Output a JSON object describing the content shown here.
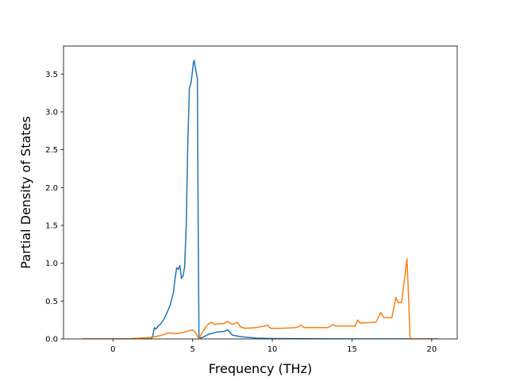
{
  "chart_data": {
    "type": "line",
    "title": "",
    "xlabel": "Frequency (THz)",
    "ylabel": "Partial Density of States",
    "xlim": [
      -3.1,
      21.6
    ],
    "ylim": [
      0,
      3.87
    ],
    "xticks": [
      0,
      5,
      10,
      15,
      20
    ],
    "yticks": [
      0.0,
      0.5,
      1.0,
      1.5,
      2.0,
      2.5,
      3.0,
      3.5
    ],
    "grid": false,
    "legend": "none",
    "series": [
      {
        "color": "#1f77b4",
        "x": [
          -1.9,
          2.4,
          2.5,
          2.6,
          2.7,
          2.8,
          3.0,
          3.2,
          3.4,
          3.6,
          3.8,
          3.9,
          4.0,
          4.1,
          4.2,
          4.3,
          4.4,
          4.5,
          4.6,
          4.7,
          4.8,
          4.9,
          5.0,
          5.05,
          5.1,
          5.2,
          5.3,
          5.35,
          5.4,
          5.6,
          6.0,
          6.5,
          7.0,
          7.2,
          7.5,
          8.0,
          9.0,
          10.0,
          12.0,
          15.0,
          20.4
        ],
        "y": [
          0.0,
          0.0,
          0.04,
          0.15,
          0.13,
          0.16,
          0.2,
          0.26,
          0.35,
          0.45,
          0.62,
          0.8,
          0.94,
          0.92,
          0.97,
          0.8,
          0.83,
          0.95,
          1.5,
          2.6,
          3.32,
          3.38,
          3.55,
          3.65,
          3.68,
          3.55,
          3.44,
          1.5,
          0.0,
          0.02,
          0.06,
          0.09,
          0.1,
          0.12,
          0.05,
          0.03,
          0.01,
          0.005,
          0.003,
          0.0,
          0.0
        ]
      },
      {
        "color": "#ff7f0e",
        "x": [
          -1.9,
          0.0,
          1.0,
          2.0,
          2.5,
          3.0,
          3.5,
          4.0,
          4.5,
          4.8,
          5.0,
          5.2,
          5.4,
          5.6,
          5.8,
          6.0,
          6.2,
          6.4,
          6.6,
          6.9,
          7.2,
          7.5,
          7.8,
          8.0,
          8.3,
          9.0,
          9.7,
          9.9,
          10.5,
          11.5,
          11.8,
          12.0,
          13.5,
          13.8,
          14.0,
          15.2,
          15.35,
          15.5,
          16.5,
          16.8,
          17.0,
          17.5,
          17.75,
          17.9,
          18.1,
          18.3,
          18.45,
          18.55,
          18.65,
          20.4
        ],
        "y": [
          0.0,
          0.0,
          0.003,
          0.015,
          0.025,
          0.045,
          0.08,
          0.07,
          0.09,
          0.11,
          0.12,
          0.08,
          0.0,
          0.08,
          0.15,
          0.2,
          0.22,
          0.19,
          0.2,
          0.2,
          0.23,
          0.19,
          0.22,
          0.16,
          0.14,
          0.15,
          0.18,
          0.14,
          0.14,
          0.15,
          0.18,
          0.15,
          0.15,
          0.19,
          0.17,
          0.17,
          0.25,
          0.21,
          0.22,
          0.35,
          0.28,
          0.28,
          0.55,
          0.48,
          0.48,
          0.8,
          1.06,
          0.55,
          0.0,
          0.0
        ]
      }
    ]
  }
}
